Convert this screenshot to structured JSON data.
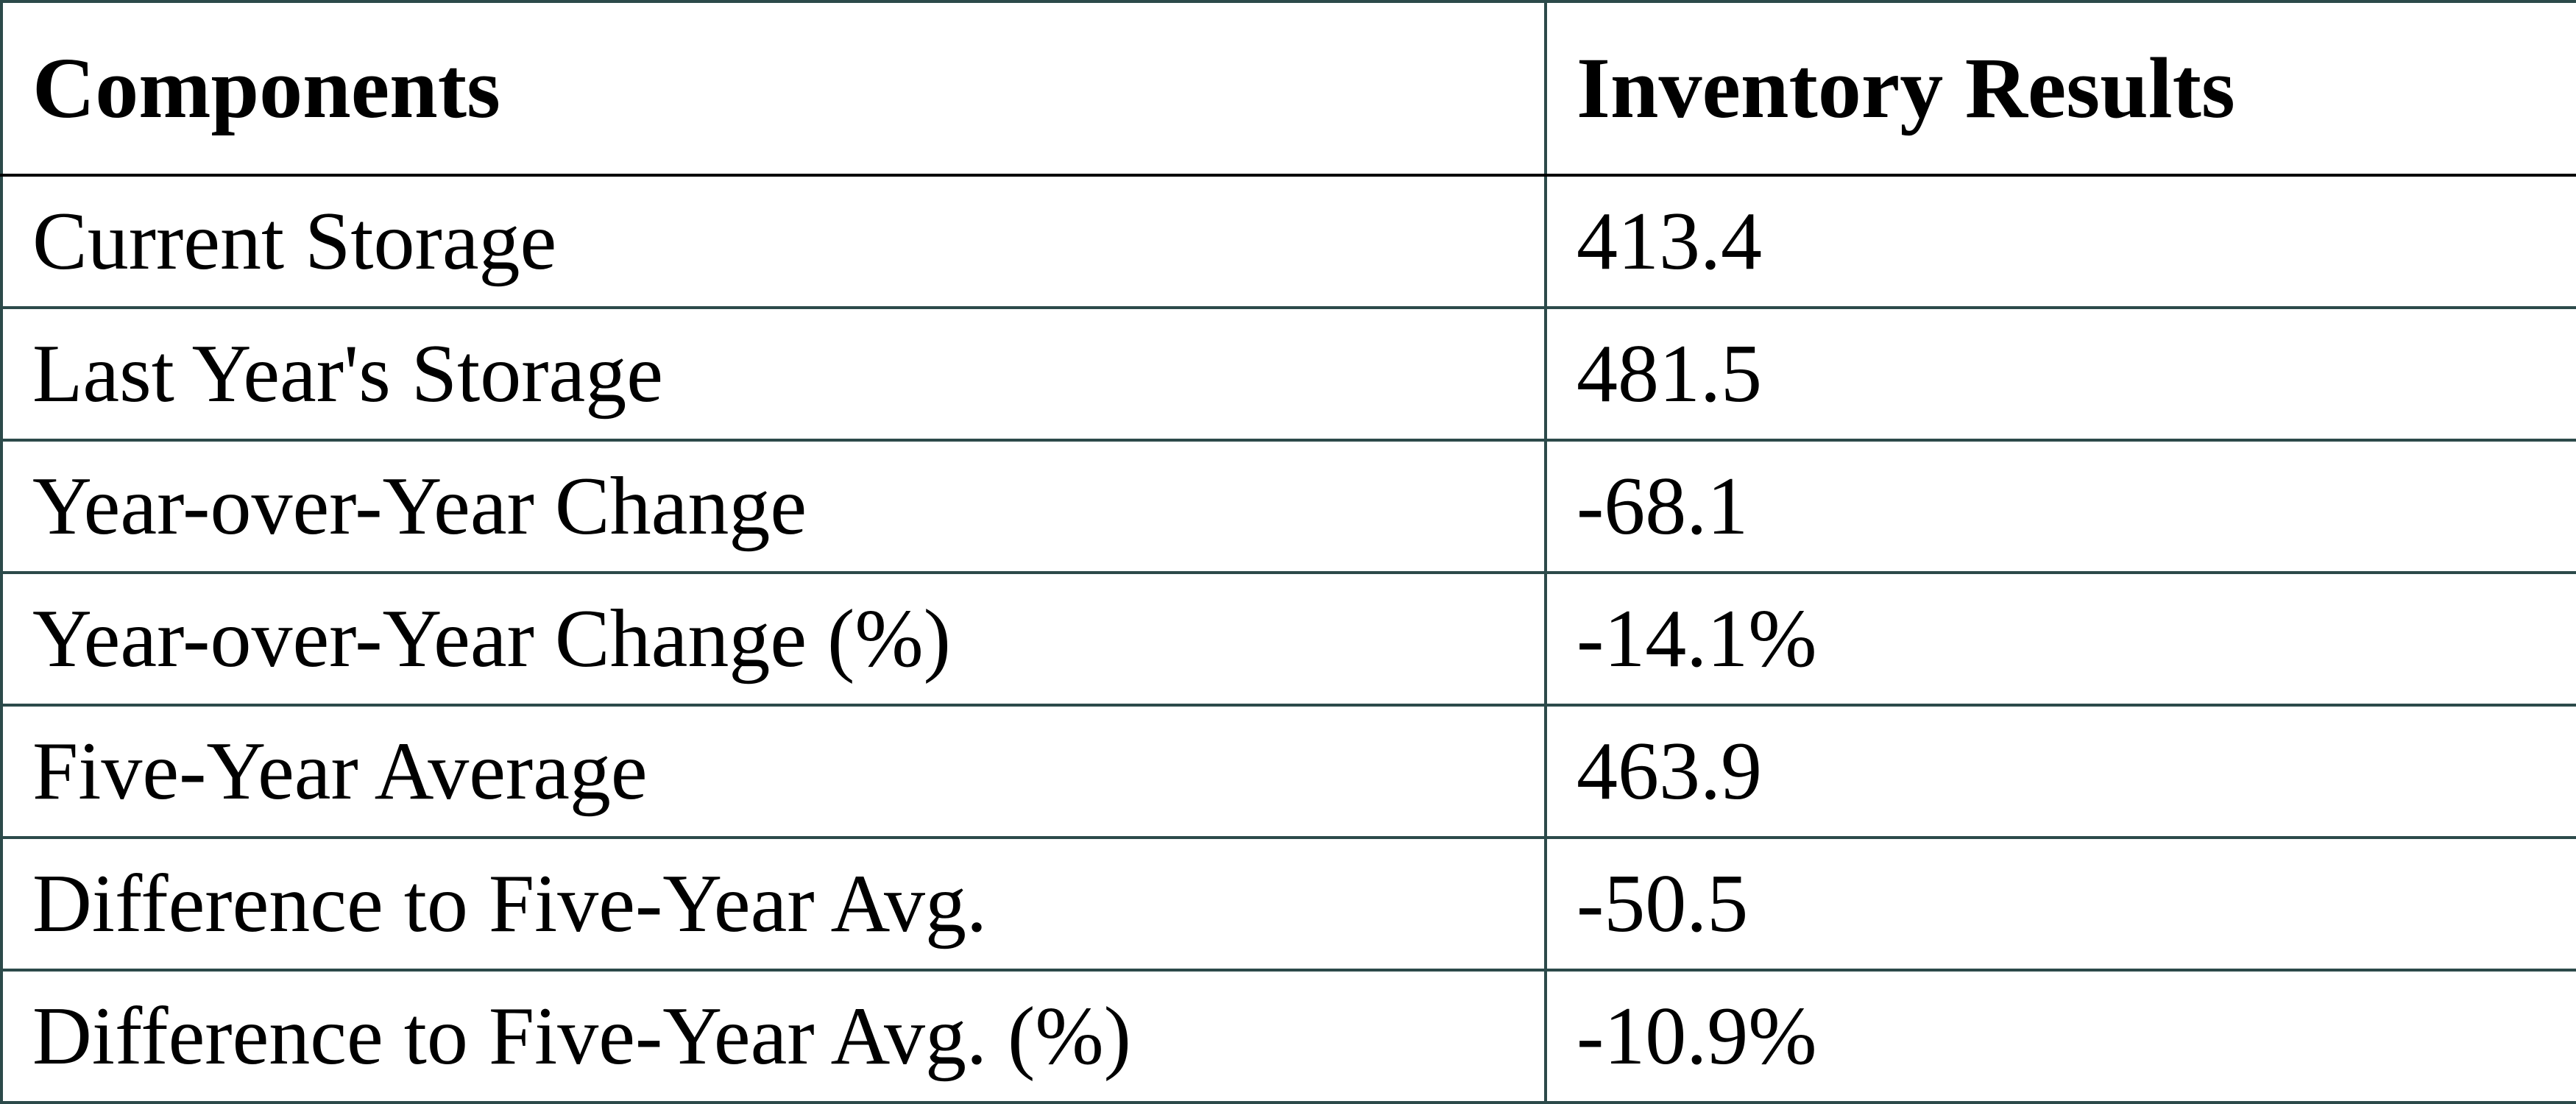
{
  "table": {
    "header": [
      "Components",
      "Inventory Results"
    ],
    "rows": [
      [
        "Current Storage",
        "413.4"
      ],
      [
        "Last Year's Storage",
        "481.5"
      ],
      [
        "Year-over-Year Change",
        "-68.1"
      ],
      [
        "Year-over-Year Change (%)",
        "-14.1%"
      ],
      [
        "Five-Year Average",
        "463.9"
      ],
      [
        "Difference to Five-Year Avg.",
        "-50.5"
      ],
      [
        "Difference to Five-Year Avg. (%)",
        "-10.9%"
      ]
    ]
  }
}
